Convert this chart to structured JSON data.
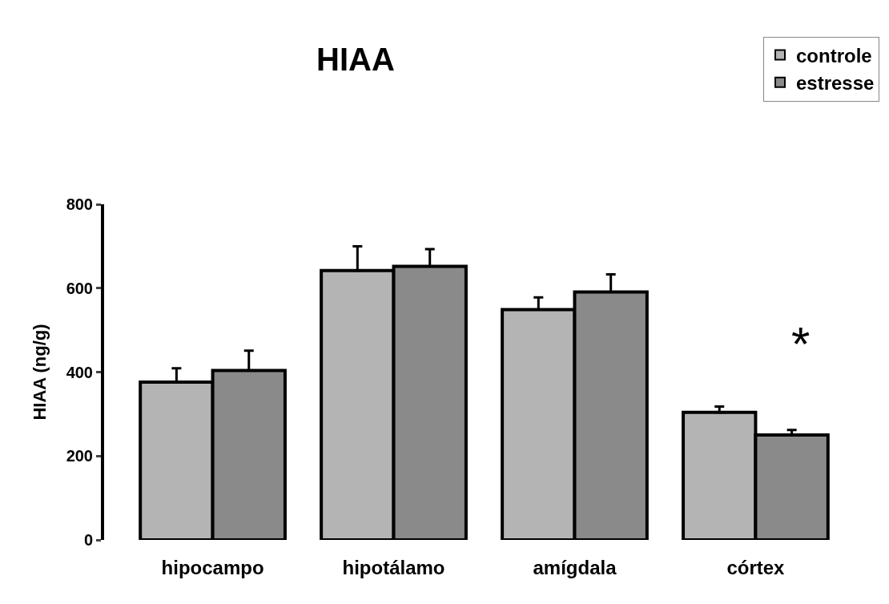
{
  "chart_data": {
    "type": "bar",
    "title": "HIAA",
    "ylabel": "HIAA (ng/g)",
    "categories": [
      "hipocampo",
      "hipotálamo",
      "amígdala",
      "córtex"
    ],
    "series": [
      {
        "name": "controle",
        "color": "#b4b4b4",
        "values": [
          376,
          642,
          549,
          304
        ],
        "errors": [
          33,
          58,
          29,
          14
        ]
      },
      {
        "name": "estresse",
        "color": "#8a8a8a",
        "values": [
          404,
          652,
          591,
          250
        ],
        "errors": [
          47,
          41,
          42,
          12
        ]
      }
    ],
    "ylim": [
      0,
      800
    ],
    "yticks": [
      0,
      200,
      400,
      600,
      800
    ],
    "grid": false,
    "legend": "top right",
    "annotations": [
      "*"
    ]
  }
}
